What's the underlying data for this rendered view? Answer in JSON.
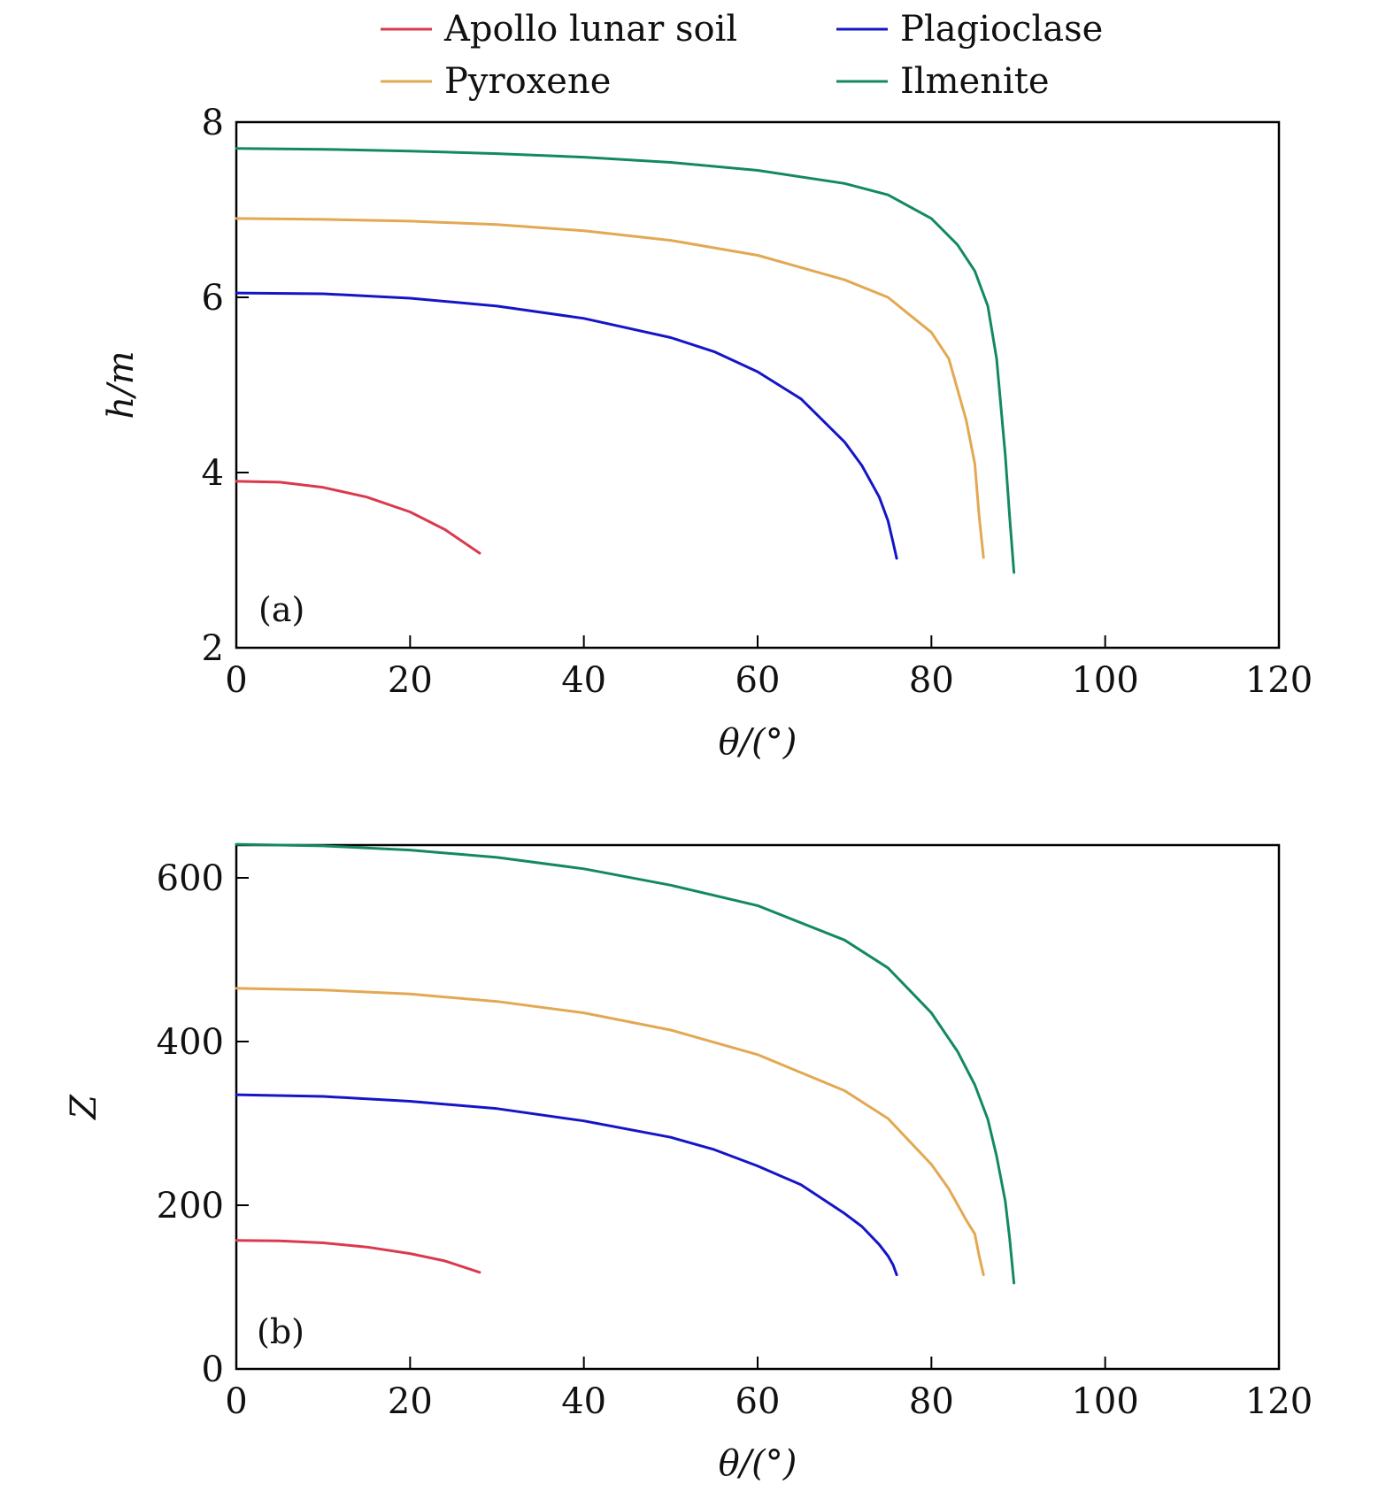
{
  "legend": [
    {
      "name": "Apollo lunar soil",
      "color": "#d93a4e"
    },
    {
      "name": "Plagioclase",
      "color": "#1515c8"
    },
    {
      "name": "Pyroxene",
      "color": "#e3a852"
    },
    {
      "name": "Ilmenite",
      "color": "#138a5e"
    }
  ],
  "chart_data": [
    {
      "type": "line",
      "panel_label": "(a)",
      "xlabel": "θ/(°)",
      "ylabel": "h/m",
      "xlim": [
        0,
        120
      ],
      "ylim": [
        2,
        8
      ],
      "xticks": [
        0,
        20,
        40,
        60,
        80,
        100,
        120
      ],
      "yticks": [
        2,
        4,
        6,
        8
      ],
      "grid": false,
      "series": [
        {
          "name": "Apollo lunar soil",
          "color": "#d93a4e",
          "x": [
            0,
            5,
            10,
            15,
            20,
            24,
            28
          ],
          "y": [
            3.9,
            3.89,
            3.83,
            3.72,
            3.55,
            3.35,
            3.08
          ]
        },
        {
          "name": "Plagioclase",
          "color": "#1515c8",
          "x": [
            0,
            10,
            20,
            30,
            40,
            50,
            55,
            60,
            65,
            70,
            72,
            74,
            75,
            75.6,
            76
          ],
          "y": [
            6.05,
            6.04,
            5.99,
            5.9,
            5.76,
            5.54,
            5.38,
            5.15,
            4.84,
            4.35,
            4.08,
            3.72,
            3.45,
            3.2,
            3.02
          ]
        },
        {
          "name": "Pyroxene",
          "color": "#e3a852",
          "x": [
            0,
            10,
            20,
            30,
            40,
            50,
            60,
            70,
            75,
            80,
            82,
            84,
            85,
            85.5,
            86
          ],
          "y": [
            6.9,
            6.89,
            6.87,
            6.83,
            6.76,
            6.65,
            6.48,
            6.2,
            6.0,
            5.6,
            5.3,
            4.6,
            4.1,
            3.5,
            3.03
          ]
        },
        {
          "name": "Ilmenite",
          "color": "#138a5e",
          "x": [
            0,
            10,
            20,
            30,
            40,
            50,
            60,
            70,
            75,
            80,
            83,
            85,
            86.5,
            87.5,
            88.5,
            89,
            89.5
          ],
          "y": [
            7.7,
            7.69,
            7.67,
            7.64,
            7.6,
            7.54,
            7.45,
            7.3,
            7.17,
            6.9,
            6.6,
            6.3,
            5.9,
            5.3,
            4.2,
            3.5,
            2.86
          ]
        }
      ]
    },
    {
      "type": "line",
      "panel_label": "(b)",
      "xlabel": "θ/(°)",
      "ylabel": "Z",
      "xlim": [
        0,
        120
      ],
      "ylim": [
        0,
        640
      ],
      "xticks": [
        0,
        20,
        40,
        60,
        80,
        100,
        120
      ],
      "yticks": [
        0,
        200,
        400,
        600
      ],
      "grid": false,
      "series": [
        {
          "name": "Apollo lunar soil",
          "color": "#d93a4e",
          "x": [
            0,
            5,
            10,
            15,
            20,
            24,
            28
          ],
          "y": [
            157,
            156.5,
            154,
            149,
            141,
            132,
            118
          ]
        },
        {
          "name": "Plagioclase",
          "color": "#1515c8",
          "x": [
            0,
            10,
            20,
            30,
            40,
            50,
            55,
            60,
            65,
            70,
            72,
            74,
            75,
            75.6,
            76
          ],
          "y": [
            335,
            333,
            327,
            318,
            303,
            283,
            268,
            248,
            225,
            190,
            174,
            152,
            138,
            127,
            115
          ]
        },
        {
          "name": "Pyroxene",
          "color": "#e3a852",
          "x": [
            0,
            10,
            20,
            30,
            40,
            50,
            60,
            70,
            75,
            80,
            82,
            84,
            85,
            85.5,
            86
          ],
          "y": [
            465,
            463,
            458,
            449,
            435,
            414,
            384,
            340,
            306,
            250,
            220,
            182,
            165,
            138,
            115
          ]
        },
        {
          "name": "Ilmenite",
          "color": "#138a5e",
          "x": [
            0,
            10,
            20,
            30,
            40,
            50,
            60,
            70,
            75,
            80,
            83,
            85,
            86.5,
            87.5,
            88.5,
            89,
            89.5
          ],
          "y": [
            641,
            639,
            634,
            625,
            611,
            591,
            566,
            524,
            490,
            435,
            388,
            347,
            305,
            260,
            205,
            160,
            105
          ]
        }
      ]
    }
  ]
}
